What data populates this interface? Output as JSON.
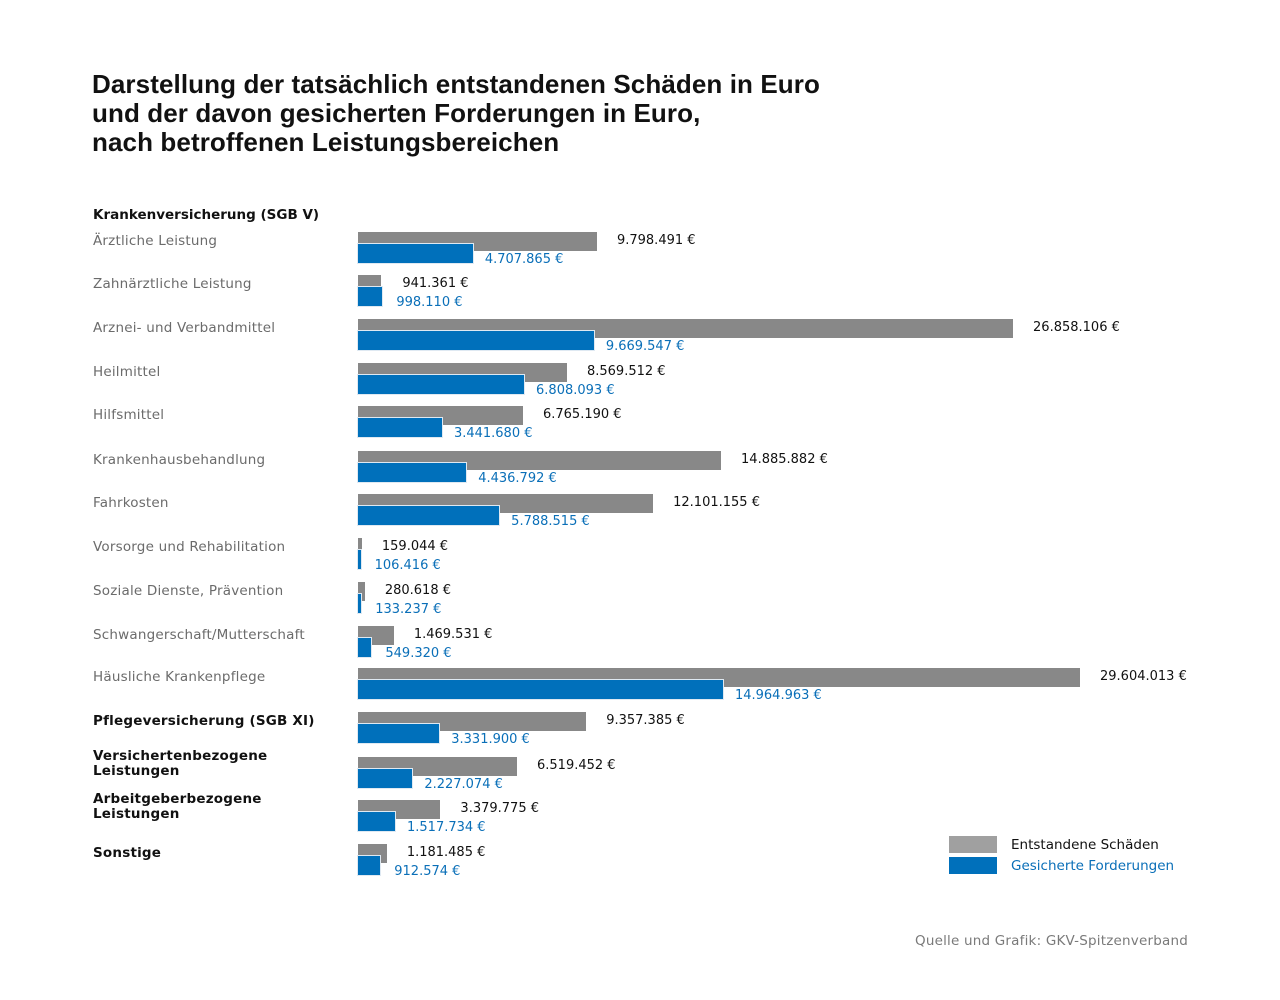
{
  "chart_data": {
    "type": "bar",
    "orientation": "horizontal",
    "title": "Darstellung der tatsächlich entstandenen Schäden in Euro und der davon gesicherten Forderungen in Euro, nach betroffenen Leistungsbereichen",
    "title_lines": [
      "Darstellung der tatsächlich entstandenen Schäden in Euro",
      "und der davon gesicherten Forderungen in Euro,",
      "nach betroffenen Leistungsbereichen"
    ],
    "section_header": "Krankenversicherung (SGB V)",
    "xlabel": "",
    "ylabel": "",
    "xlim": [
      0,
      29604013
    ],
    "grid": false,
    "legend_position": "bottom-right",
    "categories": [
      "Ärztliche Leistung",
      "Zahnärztliche Leistung",
      "Arznei- und Verbandmittel",
      "Heilmittel",
      "Hilfsmittel",
      "Krankenhausbehandlung",
      "Fahrkosten",
      "Vorsorge und Rehabilitation",
      "Soziale Dienste, Prävention",
      "Schwangerschaft/Mutterschaft",
      "Häusliche Krankenpflege",
      "Pflegeversicherung (SGB XI)",
      "Versichertenbezogene Leistungen",
      "Arbeitgeberbezogene Leistungen",
      "Sonstige"
    ],
    "category_bold": [
      false,
      false,
      false,
      false,
      false,
      false,
      false,
      false,
      false,
      false,
      false,
      true,
      true,
      true,
      true
    ],
    "category_lines": [
      [
        "Ärztliche Leistung"
      ],
      [
        "Zahnärztliche Leistung"
      ],
      [
        "Arznei- und Verbandmittel"
      ],
      [
        "Heilmittel"
      ],
      [
        "Hilfsmittel"
      ],
      [
        "Krankenhausbehandlung"
      ],
      [
        "Fahrkosten"
      ],
      [
        "Vorsorge und Rehabilitation"
      ],
      [
        "Soziale Dienste, Prävention"
      ],
      [
        "Schwangerschaft/Mutterschaft"
      ],
      [
        "Häusliche Krankenpflege"
      ],
      [
        "Pflegeversicherung (SGB XI)"
      ],
      [
        "Versichertenbezogene",
        "Leistungen"
      ],
      [
        "Arbeitgeberbezogene",
        "Leistungen"
      ],
      [
        "Sonstige"
      ]
    ],
    "series": [
      {
        "name": "Entstandene Schäden",
        "color": "#888888",
        "legend_color": "#a0a0a0",
        "values": [
          9798491,
          941361,
          26858106,
          8569512,
          6765190,
          14885882,
          12101155,
          159044,
          280618,
          1469531,
          29604013,
          9357385,
          6519452,
          3379775,
          1181485
        ],
        "labels": [
          "9.798.491 €",
          "941.361 €",
          "26.858.106 €",
          "8.569.512 €",
          "6.765.190 €",
          "14.885.882 €",
          "12.101.155 €",
          "159.044 €",
          "280.618 €",
          "1.469.531 €",
          "29.604.013 €",
          "9.357.385 €",
          "6.519.452 €",
          "3.379.775 €",
          "1.181.485 €"
        ]
      },
      {
        "name": "Gesicherte Forderungen",
        "color": "#0070bb",
        "legend_color": "#0070bb",
        "values": [
          4707865,
          998110,
          9669547,
          6808093,
          3441680,
          4436792,
          5788515,
          106416,
          133237,
          549320,
          14964963,
          3331900,
          2227074,
          1517734,
          912574
        ],
        "labels": [
          "4.707.865 €",
          "998.110 €",
          "9.669.547 €",
          "6.808.093 €",
          "3.441.680 €",
          "4.436.792 €",
          "5.788.515 €",
          "106.416 €",
          "133.237 €",
          "549.320 €",
          "14.964.963 €",
          "3.331.900 €",
          "2.227.074 €",
          "1.517.734 €",
          "912.574 €"
        ]
      }
    ],
    "source": "Quelle und Grafik: GKV-Spitzenverband"
  }
}
